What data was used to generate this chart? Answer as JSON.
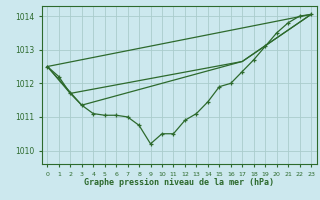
{
  "background_color": "#cce8ee",
  "grid_color": "#aacccc",
  "line_color": "#2d6a2d",
  "title": "Graphe pression niveau de la mer (hPa)",
  "xlim": [
    -0.5,
    23.5
  ],
  "ylim": [
    1009.6,
    1014.3
  ],
  "yticks": [
    1010,
    1011,
    1012,
    1013,
    1014
  ],
  "xticks": [
    0,
    1,
    2,
    3,
    4,
    5,
    6,
    7,
    8,
    9,
    10,
    11,
    12,
    13,
    14,
    15,
    16,
    17,
    18,
    19,
    20,
    21,
    22,
    23
  ],
  "series1": {
    "x": [
      0,
      1,
      2,
      3,
      4,
      5,
      6,
      7,
      8,
      9,
      10,
      11,
      12,
      13,
      14,
      15,
      16,
      17,
      18,
      19,
      20,
      21,
      22,
      23
    ],
    "y": [
      1012.5,
      1012.2,
      1011.7,
      1011.35,
      1011.1,
      1011.05,
      1011.05,
      1011.0,
      1010.75,
      1010.2,
      1010.5,
      1010.5,
      1010.9,
      1011.1,
      1011.45,
      1011.9,
      1012.0,
      1012.35,
      1012.7,
      1013.1,
      1013.5,
      1013.8,
      1014.0,
      1014.05
    ]
  },
  "series2": {
    "x": [
      0,
      23
    ],
    "y": [
      1012.5,
      1014.05
    ]
  },
  "series3": {
    "x": [
      0,
      2,
      17,
      23
    ],
    "y": [
      1012.5,
      1011.7,
      1012.65,
      1014.05
    ]
  },
  "series4": {
    "x": [
      0,
      3,
      17,
      23
    ],
    "y": [
      1012.5,
      1011.35,
      1012.65,
      1014.05
    ]
  }
}
